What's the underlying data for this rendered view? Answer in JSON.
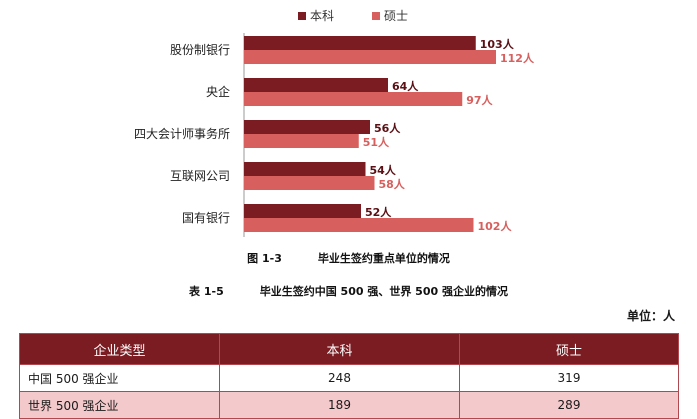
{
  "chart_data": {
    "type": "bar",
    "orientation": "horizontal",
    "categories": [
      "股份制银行",
      "央企",
      "四大会计师事务所",
      "互联网公司",
      "国有银行"
    ],
    "series": [
      {
        "name": "本科",
        "values": [
          103,
          64,
          56,
          54,
          52
        ],
        "labels": [
          "103人",
          "64人",
          "56人",
          "54人",
          "52人"
        ],
        "color": "#7b1c22"
      },
      {
        "name": "硕士",
        "values": [
          112,
          97,
          51,
          58,
          102
        ],
        "labels": [
          "112人",
          "97人",
          "51人",
          "58人",
          "102人"
        ],
        "color": "#d7605e"
      }
    ],
    "legend": "top-center",
    "grid": false,
    "xlim": [
      0,
      120
    ]
  },
  "figure_caption": {
    "number": "图  1-3",
    "text": "毕业生签约重点单位的情况"
  },
  "table_caption": {
    "number": "表  1-5",
    "text": "毕业生签约中国 500 强、世界 500 强企业的情况"
  },
  "unit_label": "单位：人",
  "table": {
    "headers": [
      "企业类型",
      "本科",
      "硕士"
    ],
    "rows": [
      [
        "中国 500 强企业",
        "248",
        "319"
      ],
      [
        "世界 500 强企业",
        "189",
        "289"
      ]
    ]
  }
}
